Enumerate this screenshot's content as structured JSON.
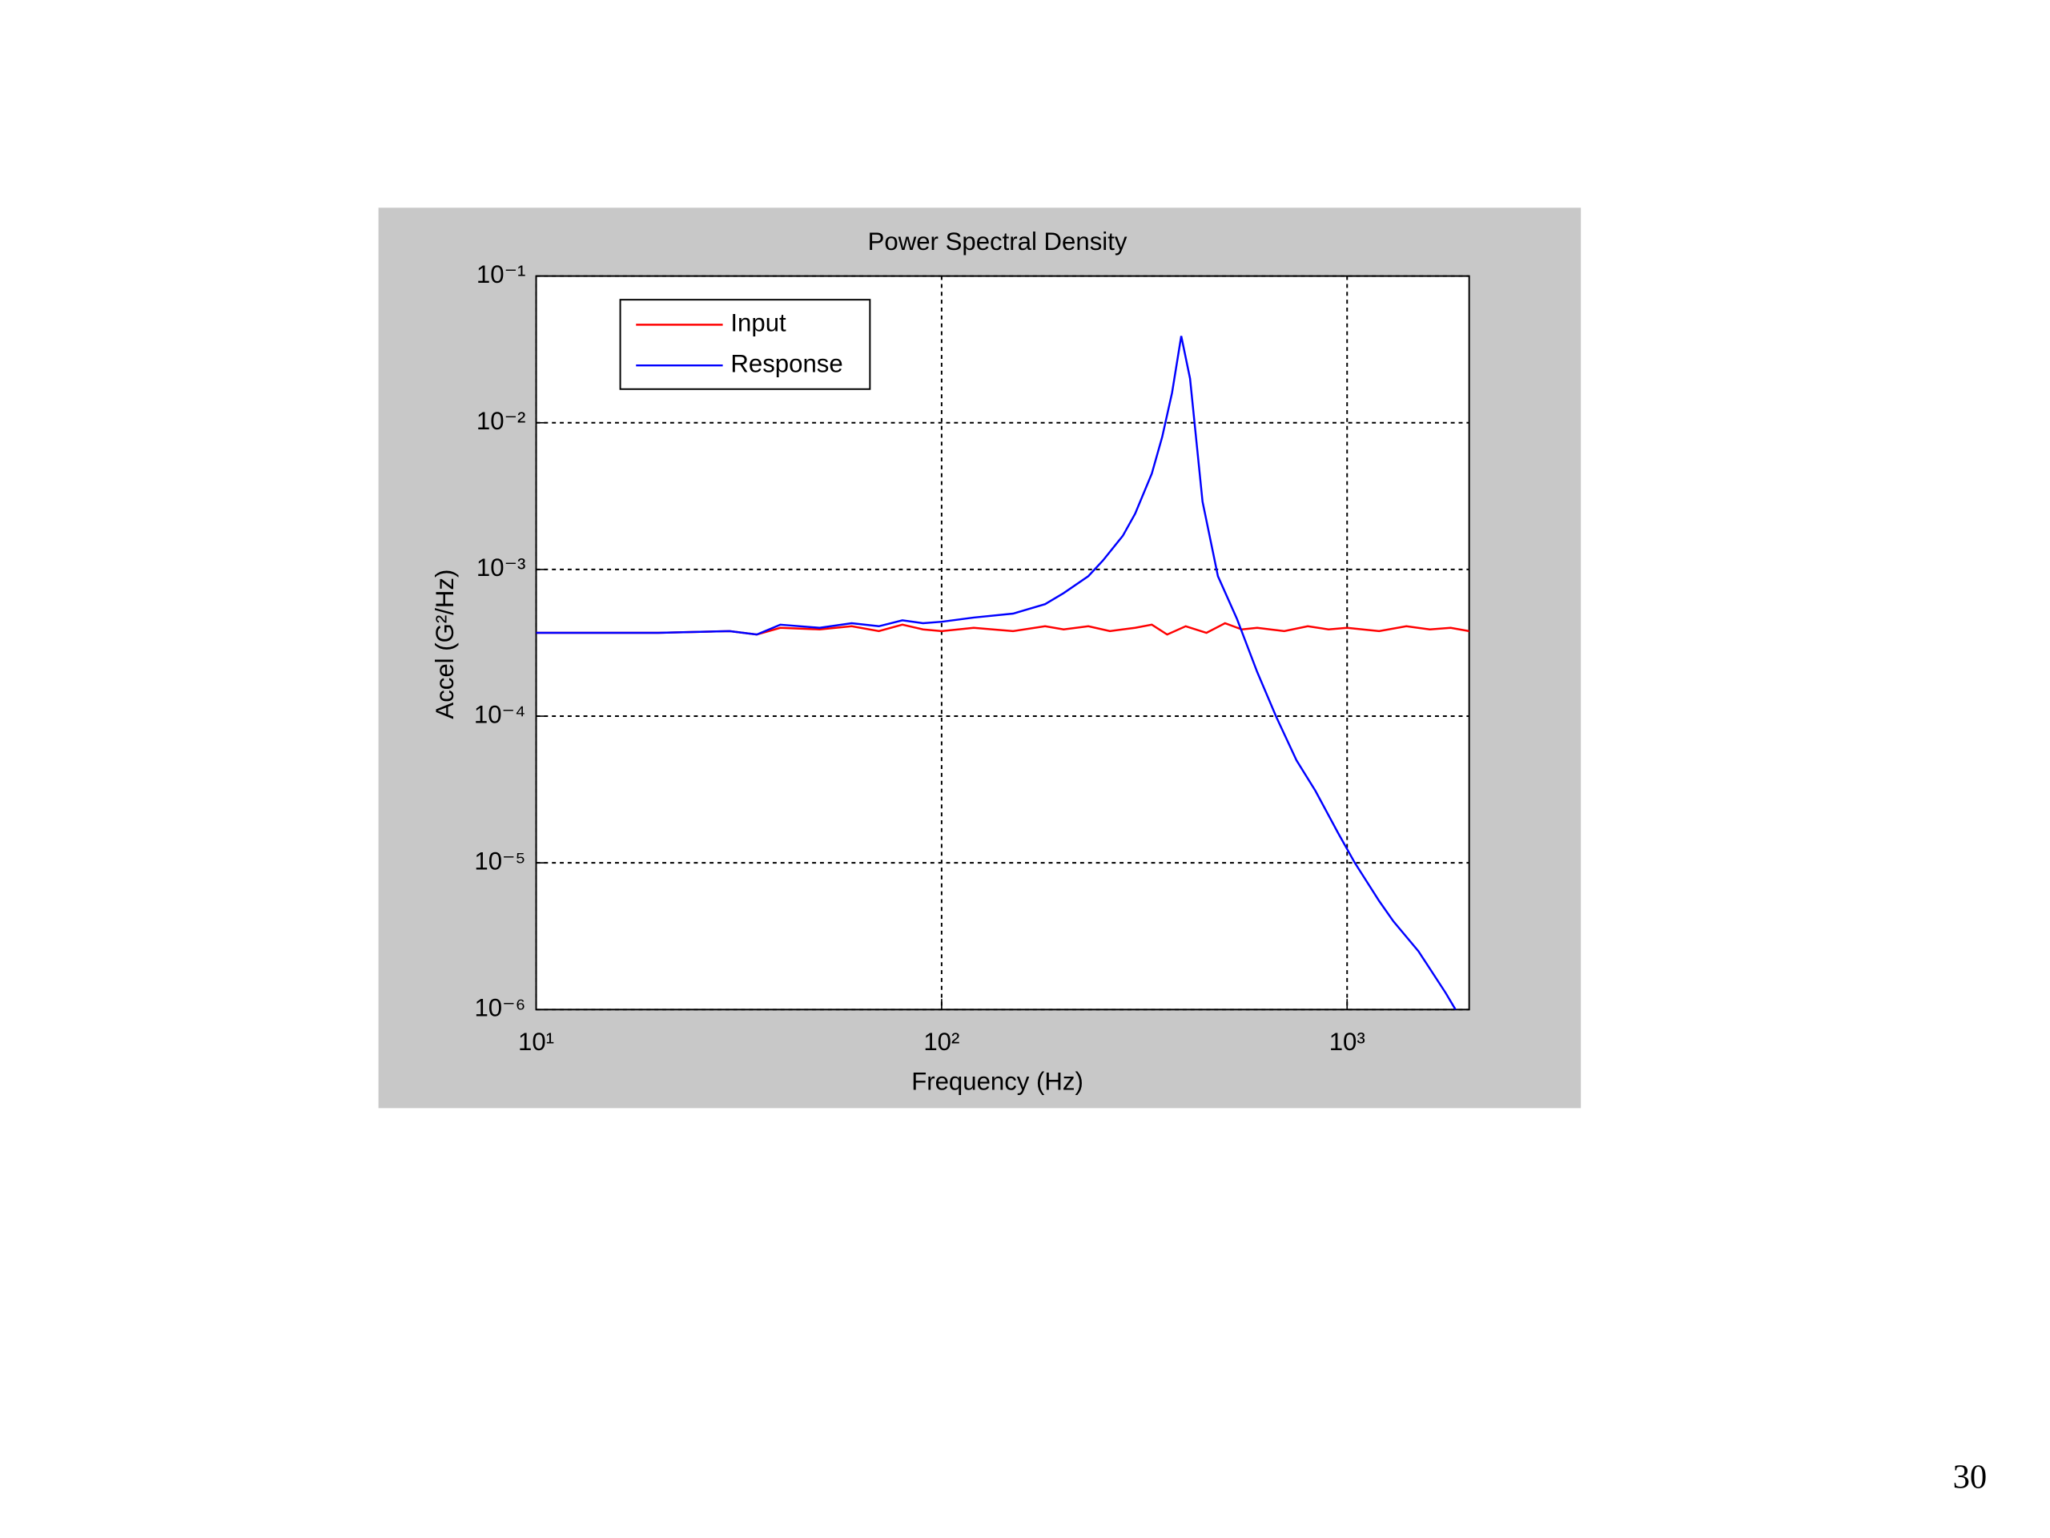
{
  "chart_data": {
    "type": "line",
    "title": "Power Spectral Density",
    "xlabel": "Frequency (Hz)",
    "ylabel": "Accel (G²/Hz)",
    "xscale": "log",
    "yscale": "log",
    "grid": true,
    "legend": "upper left",
    "xlim": [
      10,
      2000
    ],
    "ylim": [
      1e-06,
      0.1
    ],
    "xticks": [
      {
        "value": 10,
        "label": "10¹"
      },
      {
        "value": 100,
        "label": "10²"
      },
      {
        "value": 1000,
        "label": "10³"
      }
    ],
    "yticks": [
      {
        "value": 1e-06,
        "label": "10⁻⁶"
      },
      {
        "value": 1e-05,
        "label": "10⁻⁵"
      },
      {
        "value": 0.0001,
        "label": "10⁻⁴"
      },
      {
        "value": 0.001,
        "label": "10⁻³"
      },
      {
        "value": 0.01,
        "label": "10⁻²"
      },
      {
        "value": 0.1,
        "label": "10⁻¹"
      }
    ],
    "series": [
      {
        "name": "Input",
        "color": "#ff0000",
        "x": [
          10,
          20,
          30,
          35,
          40,
          50,
          60,
          70,
          80,
          90,
          100,
          120,
          150,
          180,
          200,
          230,
          260,
          300,
          330,
          360,
          400,
          450,
          500,
          550,
          600,
          700,
          800,
          900,
          1000,
          1200,
          1400,
          1600,
          1800,
          2000
        ],
        "values": [
          0.00037,
          0.00037,
          0.00038,
          0.00036,
          0.0004,
          0.00039,
          0.00041,
          0.00038,
          0.00042,
          0.00039,
          0.00038,
          0.0004,
          0.00038,
          0.00041,
          0.00039,
          0.00041,
          0.00038,
          0.0004,
          0.00042,
          0.00036,
          0.00041,
          0.00037,
          0.00043,
          0.00039,
          0.0004,
          0.00038,
          0.00041,
          0.00039,
          0.0004,
          0.00038,
          0.00041,
          0.00039,
          0.0004,
          0.00038
        ]
      },
      {
        "name": "Response",
        "color": "#0000ff",
        "x": [
          10,
          20,
          30,
          35,
          40,
          50,
          60,
          70,
          80,
          90,
          100,
          120,
          150,
          180,
          200,
          230,
          250,
          280,
          300,
          330,
          350,
          370,
          390,
          410,
          440,
          480,
          535,
          600,
          670,
          750,
          835,
          950,
          1045,
          1200,
          1300,
          1500,
          1750,
          1850
        ],
        "values": [
          0.00037,
          0.00037,
          0.00038,
          0.00036,
          0.00042,
          0.0004,
          0.00043,
          0.00041,
          0.00045,
          0.00043,
          0.00044,
          0.00047,
          0.0005,
          0.00058,
          0.00069,
          0.0009,
          0.00115,
          0.0017,
          0.0024,
          0.0045,
          0.008,
          0.016,
          0.039,
          0.02,
          0.0029,
          0.0009,
          0.00046,
          0.0002,
          9.8e-05,
          5e-05,
          3.1e-05,
          1.6e-05,
          1e-05,
          5.5e-06,
          4e-06,
          2.5e-06,
          1.3e-06,
          1e-06
        ]
      }
    ]
  },
  "page_number": "30"
}
